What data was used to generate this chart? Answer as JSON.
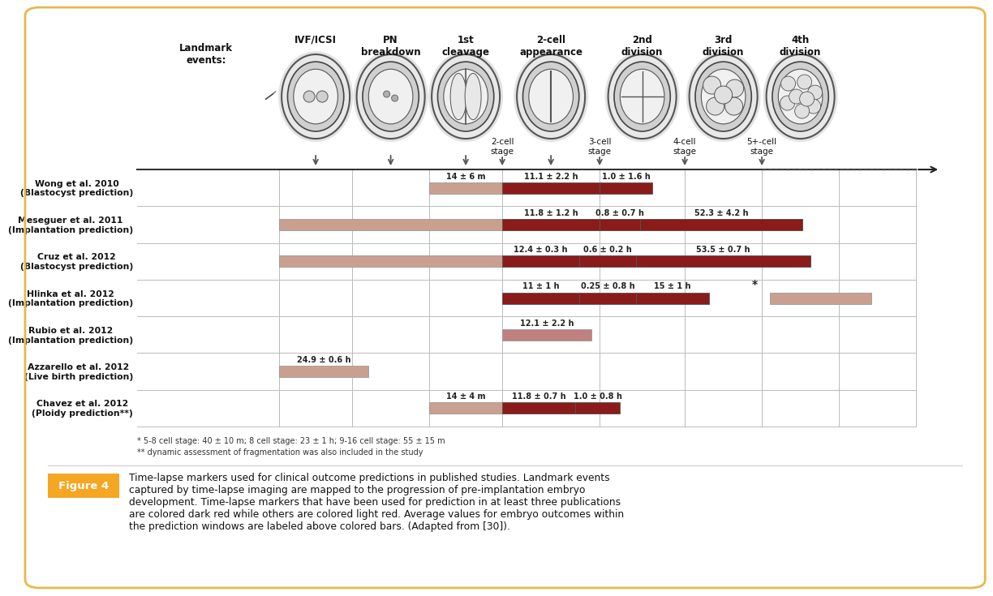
{
  "figure_bg": "#ffffff",
  "outer_border_color": "#e8b84b",
  "dark_red": "#8B1a1a",
  "light_red": "#c08080",
  "light_salmon": "#c9a090",
  "figure_caption_label": "Figure 4",
  "figure_caption_label_bg": "#f5a623",
  "figure_caption_text": "Time-lapse markers used for clinical outcome predictions in published studies. Landmark events\ncaptured by time-lapse imaging are mapped to the progression of pre-implantation embryo\ndevelopment. Time-lapse markers that have been used for prediction in at least three publications\nare colored dark red while others are colored light red. Average values for embryo outcomes within\nthe prediction windows are labeled above colored bars. (Adapted from [30]).",
  "footnote1": "* 5-8 cell stage: 40 ± 10 m; 8 cell stage: 23 ± 1 h; 9-16 cell stage: 55 ± 15 m",
  "footnote2": "** dynamic assessment of fragmentation was also included in the study",
  "header_labels": [
    "IVF/ICSI",
    "PN\nbreakdown",
    "1st\ncleavage",
    "2-cell\nappearance",
    "2nd\ndivision",
    "3rd\ndivision",
    "4th\ndivision"
  ],
  "stage_labels": [
    "2-cell\nstage",
    "3-cell\nstage",
    "4-cell\nstage",
    "5+-cell\nstage"
  ],
  "row_labels": [
    "Wong et al. 2010\n(Blastocyst prediction)",
    "Meseguer et al. 2011\n(Implantation prediction)",
    "Cruz et al. 2012\n(Blastocyst prediction)",
    "Hlinka et al. 2012\n(Implantation prediction)",
    "Rubio et al. 2012\n(Implantation prediction)",
    "Azzarello et al. 2012\n(Live birth prediction)",
    "Chavez et al. 2012\n(Ploidy prediction**)"
  ]
}
